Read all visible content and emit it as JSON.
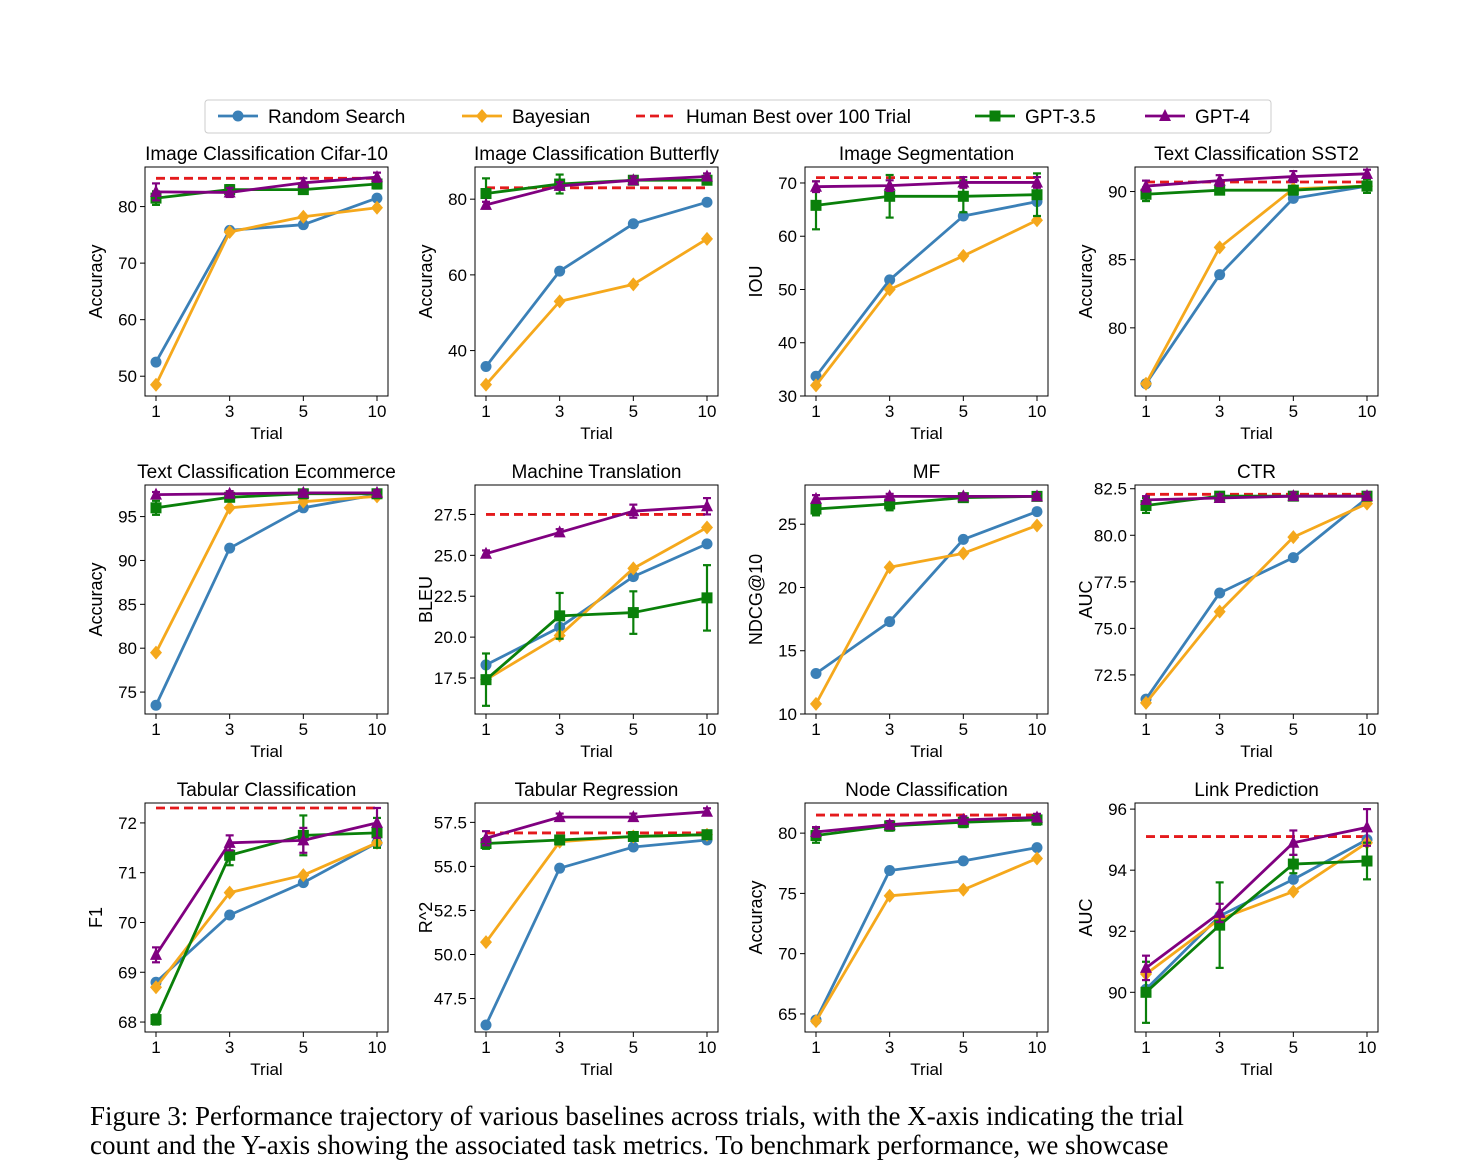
{
  "legend": {
    "entries": [
      {
        "key": "random",
        "label": "Random Search",
        "color": "#3b80b7",
        "marker": "circle",
        "line": "solid"
      },
      {
        "key": "bayes",
        "label": "Bayesian",
        "color": "#f5a81c",
        "marker": "diamond",
        "line": "solid"
      },
      {
        "key": "human",
        "label": "Human Best over 100 Trial",
        "color": "#e41a1c",
        "marker": "none",
        "line": "dashed"
      },
      {
        "key": "gpt35",
        "label": "GPT-3.5",
        "color": "#0a800a",
        "marker": "square",
        "line": "solid"
      },
      {
        "key": "gpt4",
        "label": "GPT-4",
        "color": "#800080",
        "marker": "triangle",
        "line": "solid"
      }
    ]
  },
  "caption": {
    "line1": "Figure 3: Performance trajectory of various baselines across trials, with the X-axis indicating the trial",
    "line2": "count and the Y-axis showing the associated task metrics. To benchmark performance, we showcase"
  },
  "chart_data": [
    {
      "type": "line",
      "title": "Image Classification Cifar-10",
      "xlabel": "Trial",
      "ylabel": "Accuracy",
      "categories": [
        "1",
        "3",
        "5",
        "10"
      ],
      "ylim": [
        46.5,
        87
      ],
      "yticks": [
        50,
        60,
        70,
        80
      ],
      "ytick_labels": [
        "50",
        "60",
        "70",
        "80"
      ],
      "human_best": 85,
      "series": [
        {
          "name": "Random Search",
          "values": [
            52.5,
            75.8,
            76.8,
            81.5
          ]
        },
        {
          "name": "Bayesian",
          "values": [
            48.5,
            75.5,
            78.2,
            79.8
          ]
        },
        {
          "name": "GPT-3.5",
          "values": [
            81.5,
            83.0,
            83.0,
            84.0
          ],
          "err": [
            1.2,
            0.8,
            0.6,
            0.8
          ]
        },
        {
          "name": "GPT-4",
          "values": [
            82.6,
            82.5,
            84.2,
            85.2
          ],
          "err": [
            1.5,
            0.8,
            0.8,
            0.8
          ]
        }
      ]
    },
    {
      "type": "line",
      "title": "Image Classification Butterfly",
      "xlabel": "Trial",
      "ylabel": "Accuracy",
      "categories": [
        "1",
        "3",
        "5",
        "10"
      ],
      "ylim": [
        28,
        88.5
      ],
      "yticks": [
        40,
        60,
        80
      ],
      "ytick_labels": [
        "40",
        "60",
        "80"
      ],
      "human_best": 83,
      "series": [
        {
          "name": "Random Search",
          "values": [
            35.8,
            61,
            73.5,
            79.2
          ]
        },
        {
          "name": "Bayesian",
          "values": [
            31,
            53,
            57.5,
            69.5
          ]
        },
        {
          "name": "GPT-3.5",
          "values": [
            81.5,
            84,
            85,
            85
          ],
          "err": [
            4,
            2.5,
            1,
            1
          ]
        },
        {
          "name": "GPT-4",
          "values": [
            78.5,
            83.5,
            85,
            86
          ],
          "err": [
            0.8,
            1,
            1,
            0.8
          ]
        }
      ]
    },
    {
      "type": "line",
      "title": "Image Segmentation",
      "xlabel": "Trial",
      "ylabel": "IOU",
      "categories": [
        "1",
        "3",
        "5",
        "10"
      ],
      "ylim": [
        30,
        73
      ],
      "yticks": [
        30,
        40,
        50,
        60,
        70
      ],
      "ytick_labels": [
        "30",
        "40",
        "50",
        "60",
        "70"
      ],
      "human_best": 71,
      "series": [
        {
          "name": "Random Search",
          "values": [
            33.7,
            51.8,
            63.8,
            66.5
          ]
        },
        {
          "name": "Bayesian",
          "values": [
            32,
            50,
            56.3,
            63
          ]
        },
        {
          "name": "GPT-3.5",
          "values": [
            65.8,
            67.5,
            67.5,
            67.8
          ],
          "err": [
            4.5,
            4,
            3,
            4
          ]
        },
        {
          "name": "GPT-4",
          "values": [
            69.3,
            69.5,
            70.1,
            70.1
          ],
          "err": [
            1,
            1,
            1,
            1
          ]
        }
      ]
    },
    {
      "type": "line",
      "title": "Text Classification SST2",
      "xlabel": "Trial",
      "ylabel": "Accuracy",
      "categories": [
        "1",
        "3",
        "5",
        "10"
      ],
      "ylim": [
        75,
        91.8
      ],
      "yticks": [
        80,
        85,
        90
      ],
      "ytick_labels": [
        "80",
        "85",
        "90"
      ],
      "human_best": 90.7,
      "series": [
        {
          "name": "Random Search",
          "values": [
            75.9,
            83.9,
            89.5,
            90.4
          ]
        },
        {
          "name": "Bayesian",
          "values": [
            75.9,
            85.9,
            90.2,
            90.4
          ]
        },
        {
          "name": "GPT-3.5",
          "values": [
            89.8,
            90.1,
            90.1,
            90.4
          ],
          "err": [
            0.5,
            0.3,
            0.3,
            0.5
          ]
        },
        {
          "name": "GPT-4",
          "values": [
            90.4,
            90.8,
            91.1,
            91.3
          ],
          "err": [
            0.4,
            0.4,
            0.4,
            0.3
          ]
        }
      ]
    },
    {
      "type": "line",
      "title": "Text Classification Ecommerce",
      "xlabel": "Trial",
      "ylabel": "Accuracy",
      "categories": [
        "1",
        "3",
        "5",
        "10"
      ],
      "ylim": [
        72.5,
        98.6
      ],
      "yticks": [
        75,
        80,
        85,
        90,
        95
      ],
      "ytick_labels": [
        "75",
        "80",
        "85",
        "90",
        "95"
      ],
      "human_best": null,
      "series": [
        {
          "name": "Random Search",
          "values": [
            73.5,
            91.4,
            96,
            97.5
          ]
        },
        {
          "name": "Bayesian",
          "values": [
            79.5,
            96,
            96.7,
            97.3
          ]
        },
        {
          "name": "GPT-3.5",
          "values": [
            96,
            97.2,
            97.6,
            97.6
          ],
          "err": [
            0.8,
            0.4,
            0.4,
            0.4
          ]
        },
        {
          "name": "GPT-4",
          "values": [
            97.5,
            97.6,
            97.7,
            97.7
          ],
          "err": [
            0.3,
            0.3,
            0.3,
            0.3
          ]
        }
      ]
    },
    {
      "type": "line",
      "title": "Machine Translation",
      "xlabel": "Trial",
      "ylabel": "BLEU",
      "categories": [
        "1",
        "3",
        "5",
        "10"
      ],
      "ylim": [
        15.3,
        29.3
      ],
      "yticks": [
        17.5,
        20,
        22.5,
        25,
        27.5
      ],
      "ytick_labels": [
        "17.5",
        "20.0",
        "22.5",
        "25.0",
        "27.5"
      ],
      "human_best": 27.5,
      "series": [
        {
          "name": "Random Search",
          "values": [
            18.3,
            20.6,
            23.7,
            25.7
          ]
        },
        {
          "name": "Bayesian",
          "values": [
            17.4,
            20.1,
            24.2,
            26.7
          ]
        },
        {
          "name": "GPT-3.5",
          "values": [
            17.4,
            21.3,
            21.5,
            22.4
          ],
          "err": [
            1.6,
            1.4,
            1.3,
            2.0
          ]
        },
        {
          "name": "GPT-4",
          "values": [
            25.1,
            26.4,
            27.7,
            28.0
          ],
          "err": [
            0.2,
            0.2,
            0.4,
            0.5
          ]
        }
      ]
    },
    {
      "type": "line",
      "title": "MF",
      "xlabel": "Trial",
      "ylabel": "NDCG@10",
      "categories": [
        "1",
        "3",
        "5",
        "10"
      ],
      "ylim": [
        10,
        28.1
      ],
      "yticks": [
        10,
        15,
        20,
        25
      ],
      "ytick_labels": [
        "10",
        "15",
        "20",
        "25"
      ],
      "human_best": null,
      "series": [
        {
          "name": "Random Search",
          "values": [
            13.2,
            17.3,
            23.8,
            26
          ]
        },
        {
          "name": "Bayesian",
          "values": [
            10.8,
            21.6,
            22.7,
            24.9
          ]
        },
        {
          "name": "GPT-3.5",
          "values": [
            26.2,
            26.6,
            27.1,
            27.2
          ],
          "err": [
            0.5,
            0.5,
            0.3,
            0.3
          ]
        },
        {
          "name": "GPT-4",
          "values": [
            27,
            27.2,
            27.2,
            27.2
          ],
          "err": [
            0.3,
            0.2,
            0.2,
            0.2
          ]
        }
      ]
    },
    {
      "type": "line",
      "title": "CTR",
      "xlabel": "Trial",
      "ylabel": "AUC",
      "categories": [
        "1",
        "3",
        "5",
        "10"
      ],
      "ylim": [
        70.4,
        82.7
      ],
      "yticks": [
        72.5,
        75,
        77.5,
        80,
        82.5
      ],
      "ytick_labels": [
        "72.5",
        "75.0",
        "77.5",
        "80.0",
        "82.5"
      ],
      "human_best": 82.2,
      "series": [
        {
          "name": "Random Search",
          "values": [
            71.2,
            76.9,
            78.8,
            82
          ]
        },
        {
          "name": "Bayesian",
          "values": [
            71.0,
            75.9,
            79.9,
            81.7
          ]
        },
        {
          "name": "GPT-3.5",
          "values": [
            81.6,
            82.1,
            82.1,
            82.1
          ],
          "err": [
            0.4,
            0.2,
            0.2,
            0.2
          ]
        },
        {
          "name": "GPT-4",
          "values": [
            81.9,
            82,
            82.1,
            82.1
          ],
          "err": [
            0.2,
            0.2,
            0.2,
            0.2
          ]
        }
      ]
    },
    {
      "type": "line",
      "title": "Tabular Classification",
      "xlabel": "Trial",
      "ylabel": "F1",
      "categories": [
        "1",
        "3",
        "5",
        "10"
      ],
      "ylim": [
        67.8,
        72.4
      ],
      "yticks": [
        68,
        69,
        70,
        71,
        72
      ],
      "ytick_labels": [
        "68",
        "69",
        "70",
        "71",
        "72"
      ],
      "human_best": 72.3,
      "series": [
        {
          "name": "Random Search",
          "values": [
            68.8,
            70.15,
            70.8,
            71.6
          ]
        },
        {
          "name": "Bayesian",
          "values": [
            68.7,
            70.6,
            70.95,
            71.6
          ]
        },
        {
          "name": "GPT-3.5",
          "values": [
            68.05,
            71.35,
            71.75,
            71.8
          ],
          "err": [
            0.1,
            0.2,
            0.4,
            0.3
          ]
        },
        {
          "name": "GPT-4",
          "values": [
            69.35,
            71.6,
            71.65,
            72.0
          ],
          "err": [
            0.15,
            0.15,
            0.25,
            0.3
          ]
        }
      ]
    },
    {
      "type": "line",
      "title": "Tabular Regression",
      "xlabel": "Trial",
      "ylabel": "R^2",
      "categories": [
        "1",
        "3",
        "5",
        "10"
      ],
      "ylim": [
        45.6,
        58.6
      ],
      "yticks": [
        47.5,
        50,
        52.5,
        55,
        57.5
      ],
      "ytick_labels": [
        "47.5",
        "50.0",
        "52.5",
        "55.0",
        "57.5"
      ],
      "human_best": 56.9,
      "series": [
        {
          "name": "Random Search",
          "values": [
            46.0,
            54.9,
            56.1,
            56.5
          ]
        },
        {
          "name": "Bayesian",
          "values": [
            50.7,
            56.4,
            56.7,
            56.8
          ]
        },
        {
          "name": "GPT-3.5",
          "values": [
            56.3,
            56.5,
            56.7,
            56.8
          ],
          "err": [
            0.3,
            0.2,
            0.2,
            0.2
          ]
        },
        {
          "name": "GPT-4",
          "values": [
            56.6,
            57.8,
            57.8,
            58.1
          ],
          "err": [
            0.4,
            0.2,
            0.2,
            0.2
          ]
        }
      ]
    },
    {
      "type": "line",
      "title": "Node Classification",
      "xlabel": "Trial",
      "ylabel": "Accuracy",
      "categories": [
        "1",
        "3",
        "5",
        "10"
      ],
      "ylim": [
        63.5,
        82.5
      ],
      "yticks": [
        65,
        70,
        75,
        80
      ],
      "ytick_labels": [
        "65",
        "70",
        "75",
        "80"
      ],
      "human_best": 81.5,
      "series": [
        {
          "name": "Random Search",
          "values": [
            64.5,
            76.9,
            77.7,
            78.8
          ]
        },
        {
          "name": "Bayesian",
          "values": [
            64.4,
            74.8,
            75.3,
            77.9
          ]
        },
        {
          "name": "GPT-3.5",
          "values": [
            79.8,
            80.6,
            80.9,
            81.1
          ],
          "err": [
            0.6,
            0.4,
            0.4,
            0.4
          ]
        },
        {
          "name": "GPT-4",
          "values": [
            80.1,
            80.7,
            81.1,
            81.3
          ],
          "err": [
            0.4,
            0.3,
            0.3,
            0.3
          ]
        }
      ]
    },
    {
      "type": "line",
      "title": "Link Prediction",
      "xlabel": "Trial",
      "ylabel": "AUC",
      "categories": [
        "1",
        "3",
        "5",
        "10"
      ],
      "ylim": [
        88.7,
        96.2
      ],
      "yticks": [
        90,
        92,
        94,
        96
      ],
      "ytick_labels": [
        "90",
        "92",
        "94",
        "96"
      ],
      "human_best": 95.1,
      "series": [
        {
          "name": "Random Search",
          "values": [
            90.1,
            92.5,
            93.7,
            95
          ]
        },
        {
          "name": "Bayesian",
          "values": [
            90.6,
            92.4,
            93.3,
            94.9
          ]
        },
        {
          "name": "GPT-3.5",
          "values": [
            90.0,
            92.2,
            94.2,
            94.3
          ],
          "err": [
            1.0,
            1.4,
            0.3,
            0.6
          ]
        },
        {
          "name": "GPT-4",
          "values": [
            90.8,
            92.6,
            94.9,
            95.4
          ],
          "err": [
            0.4,
            0.3,
            0.4,
            0.6
          ]
        }
      ]
    }
  ]
}
